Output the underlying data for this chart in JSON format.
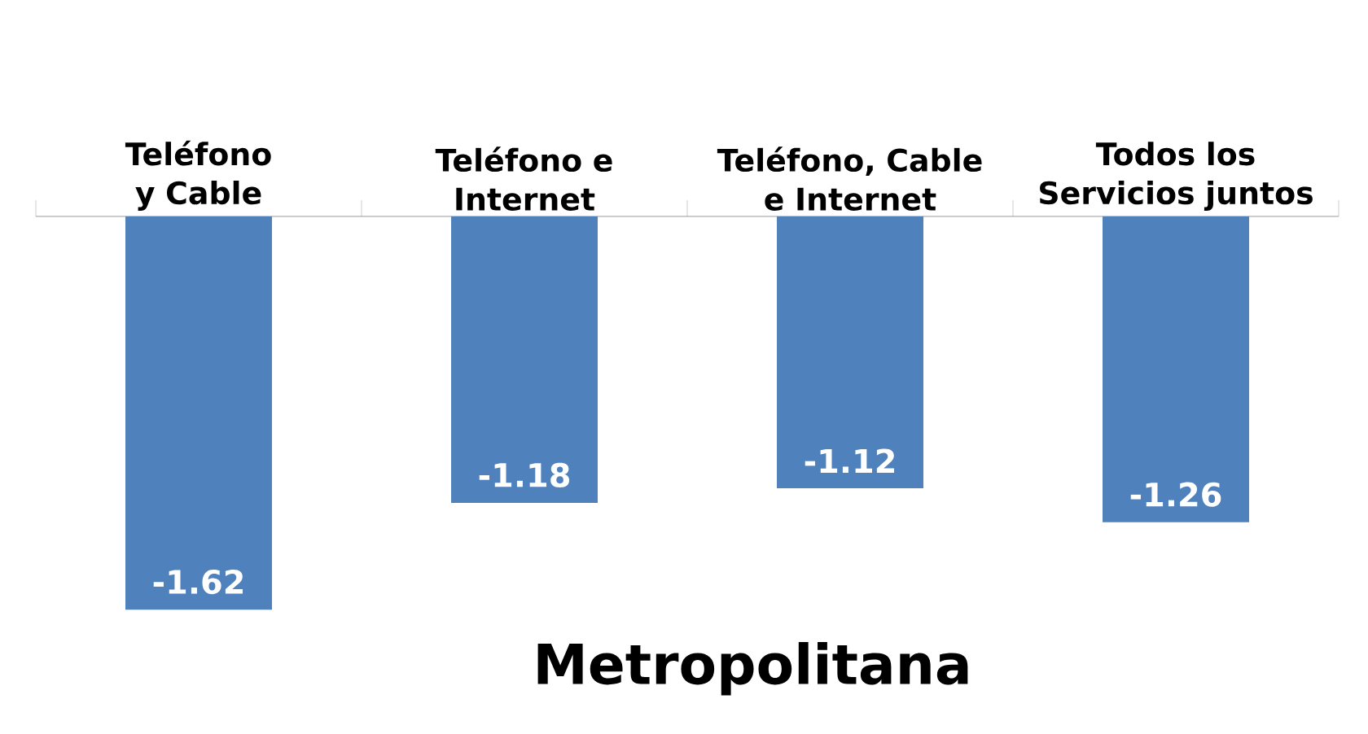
{
  "chart_data": {
    "type": "bar",
    "title": "Metropolitana",
    "categories": [
      "Teléfono y Cable",
      "Teléfono e Internet",
      "Teléfono, Cable e Internet",
      "Todos los Servicios juntos"
    ],
    "values": [
      -1.62,
      -1.18,
      -1.12,
      -1.26
    ],
    "color": "#4f81bd",
    "data_labels": true
  }
}
